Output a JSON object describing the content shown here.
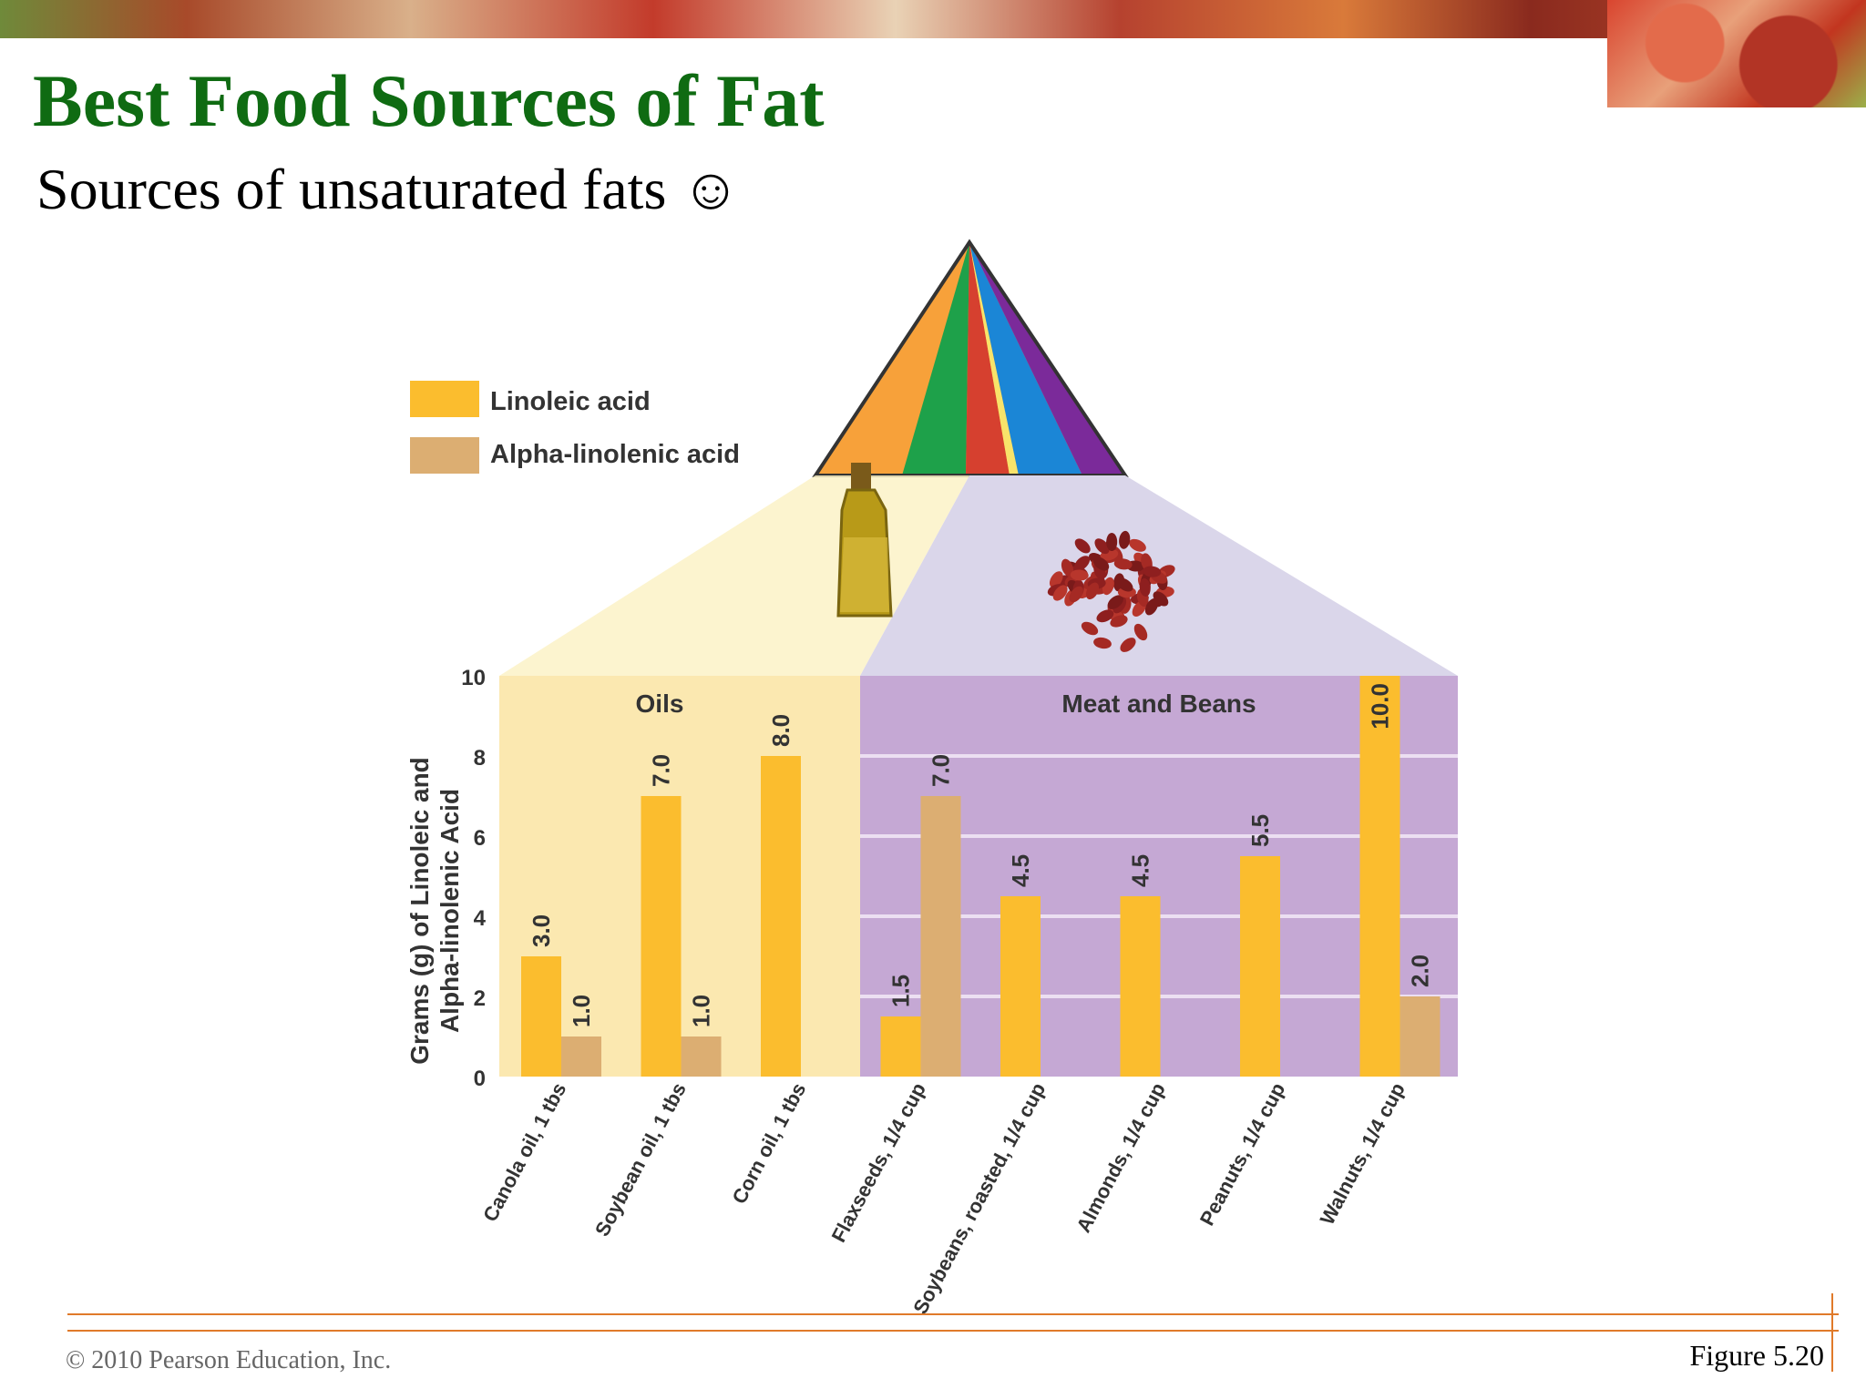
{
  "header": {
    "title": "Best Food Sources of Fat",
    "subtitle": "Sources of unsaturated fats ☺"
  },
  "footer": {
    "copyright": "© 2010 Pearson Education, Inc.",
    "figure": "Figure 5.20"
  },
  "chart_data": {
    "type": "bar",
    "ylabel_line1": "Grams (g) of Linoleic and",
    "ylabel_line2": "Alpha-linolenic Acid",
    "ylim": [
      0,
      10
    ],
    "yticks": [
      0,
      2,
      4,
      6,
      8,
      10
    ],
    "grid": true,
    "legend_position": "top-left",
    "groups": [
      {
        "label": "Oils",
        "color": "#fbe8b0"
      },
      {
        "label": "Meat and Beans",
        "color": "#c5a8d4"
      }
    ],
    "categories": [
      "Canola oil, 1 tbs",
      "Soybean oil, 1 tbs",
      "Corn oil, 1 tbs",
      "Flaxseeds, 1/4 cup",
      "Soybeans, roasted, 1/4 cup",
      "Almonds, 1/4 cup",
      "Peanuts, 1/4 cup",
      "Walnuts, 1/4 cup"
    ],
    "category_group": [
      0,
      0,
      0,
      1,
      1,
      1,
      1,
      1
    ],
    "series": [
      {
        "name": "Linoleic acid",
        "color": "#fbbd2e",
        "values": [
          3.0,
          7.0,
          8.0,
          1.5,
          4.5,
          4.5,
          5.5,
          10.0
        ],
        "labels": [
          "3.0",
          "7.0",
          "8.0",
          "1.5",
          "4.5",
          "4.5",
          "5.5",
          "10.0"
        ]
      },
      {
        "name": "Alpha-linolenic acid",
        "color": "#dcae72",
        "values": [
          1.0,
          1.0,
          null,
          7.0,
          null,
          null,
          null,
          2.0
        ],
        "labels": [
          "1.0",
          "1.0",
          "",
          "7.0",
          "",
          "",
          "",
          "2.0"
        ]
      }
    ]
  }
}
